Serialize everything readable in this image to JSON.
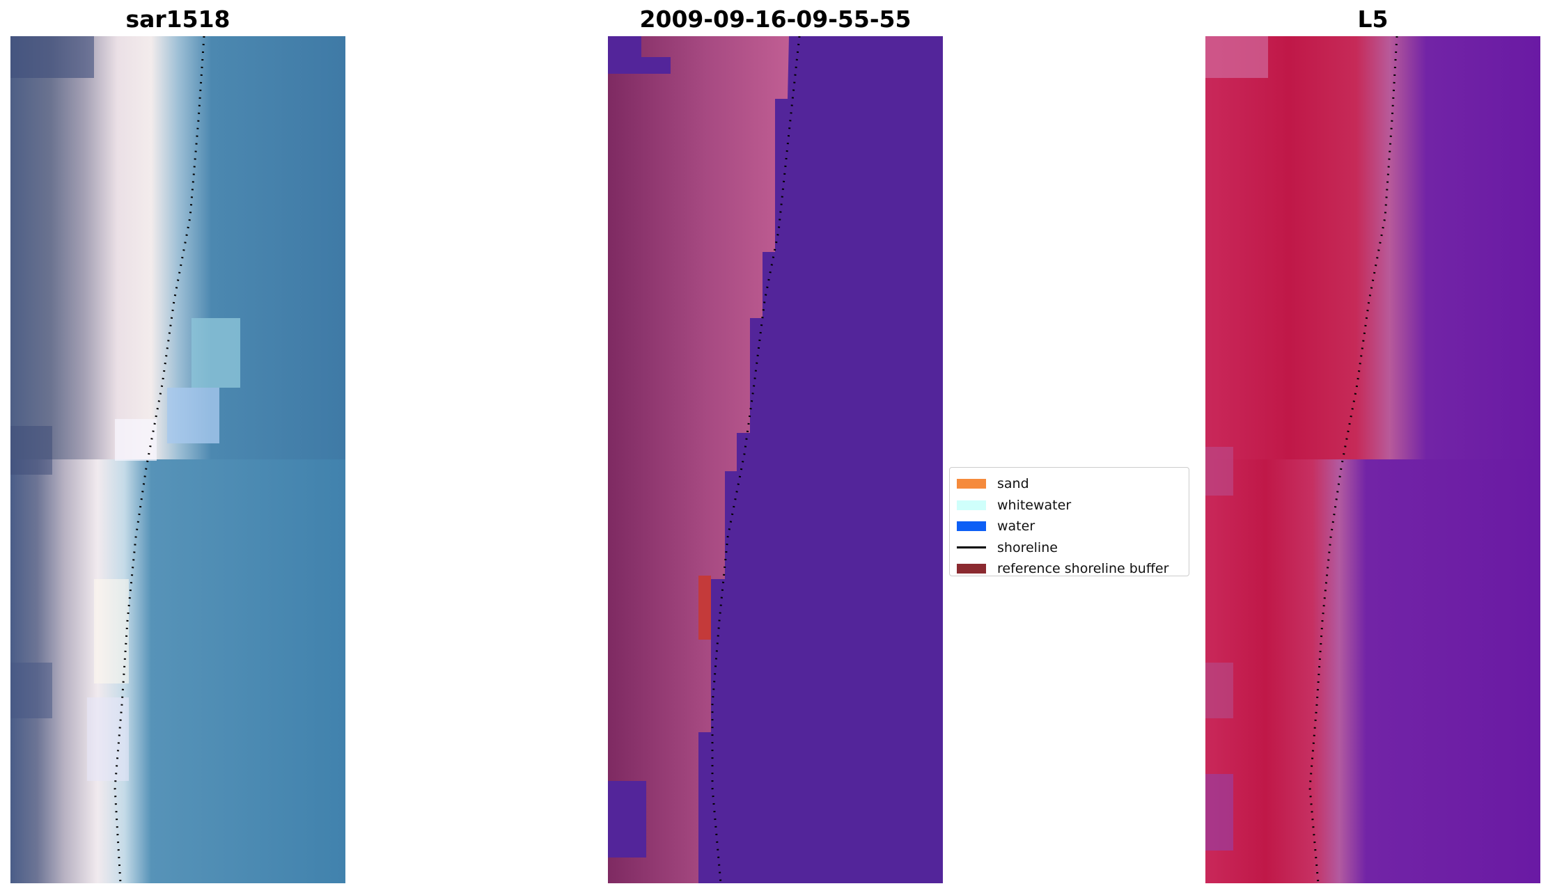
{
  "panels": [
    {
      "title": "sar1518"
    },
    {
      "title": "2009-09-16-09-55-55"
    },
    {
      "title": "L5"
    }
  ],
  "legend": {
    "items": [
      {
        "label": "sand",
        "color": "#f58a3c",
        "kind": "patch"
      },
      {
        "label": "whitewater",
        "color": "#cffffb",
        "kind": "patch"
      },
      {
        "label": "water",
        "color": "#0d5ff5",
        "kind": "patch"
      },
      {
        "label": "shoreline",
        "color": "#000000",
        "kind": "line"
      },
      {
        "label": "reference shoreline buffer",
        "color": "#8b2a30",
        "kind": "patch"
      }
    ]
  },
  "colors": {
    "water_blue": "#3f7aa6",
    "classified_water": "#53259a",
    "classified_land": "#b2508a",
    "index_land": "#c21644",
    "index_water": "#6a1aa4",
    "buffer_red": "#c43a3a"
  }
}
